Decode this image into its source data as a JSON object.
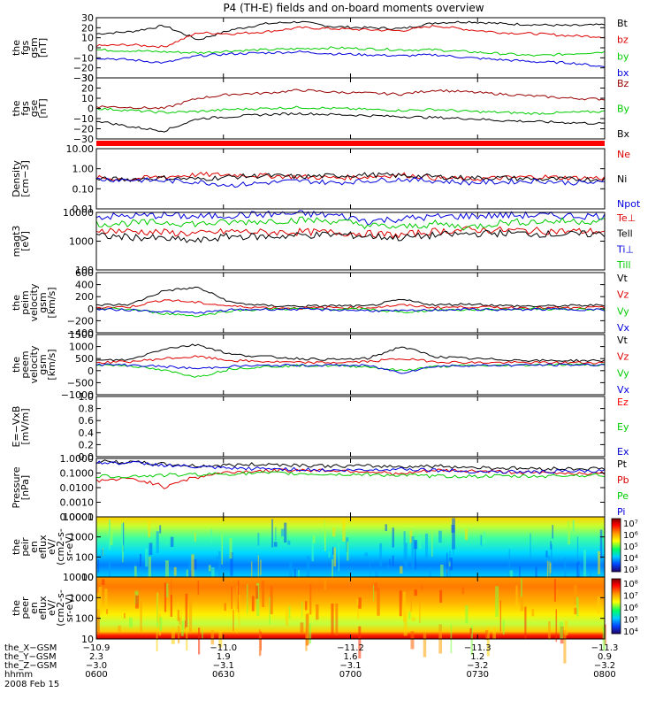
{
  "title": "P4 (TH-E) fields and on-board moments overview",
  "colors": {
    "black": "#000000",
    "red": "#dd0000",
    "green": "#00cc00",
    "blue": "#0000dd",
    "darkred": "#990000",
    "ez": "#ff0000",
    "ey": "#00cc00",
    "ex": "#0000cc"
  },
  "chart_data": [
    {
      "type": "line",
      "ylabel": [
        "the",
        "fgs",
        "gsm",
        "[nT]"
      ],
      "yticks": [
        "30",
        "20",
        "10",
        "0",
        "−10",
        "−20",
        "−30"
      ],
      "ylim": [
        -30,
        30
      ],
      "series": [
        {
          "name": "Bt",
          "color": "#000000",
          "values": [
            14,
            16,
            22,
            8,
            18,
            24,
            26,
            21,
            20,
            19,
            25,
            26,
            24,
            23,
            22,
            23
          ]
        },
        {
          "name": "bz",
          "color": "#dd0000",
          "values": [
            2,
            3,
            1,
            15,
            14,
            16,
            20,
            19,
            18,
            17,
            22,
            18,
            15,
            14,
            12,
            11
          ]
        },
        {
          "name": "by",
          "color": "#00cc00",
          "values": [
            -2,
            -3,
            -4,
            -5,
            -3,
            -2,
            -1,
            0,
            -1,
            -2,
            -2,
            -4,
            -6,
            -8,
            -6,
            -4
          ]
        },
        {
          "name": "bx",
          "color": "#0000dd",
          "values": [
            -10,
            -12,
            -15,
            -8,
            -6,
            -5,
            -4,
            -6,
            -7,
            -8,
            -7,
            -10,
            -12,
            -14,
            -15,
            -19
          ]
        }
      ]
    },
    {
      "type": "line",
      "ylabel": [
        "the",
        "fgs",
        "gse",
        "[nT]"
      ],
      "yticks": [
        "30",
        "20",
        "10",
        "0",
        "−10",
        "−20",
        "−30"
      ],
      "ylim": [
        -30,
        30
      ],
      "series": [
        {
          "name": "Bz",
          "color": "#990000",
          "values": [
            2,
            1,
            0,
            10,
            14,
            15,
            18,
            16,
            15,
            14,
            18,
            16,
            14,
            12,
            10,
            9
          ]
        },
        {
          "name": "By",
          "color": "#00cc00",
          "values": [
            0,
            -2,
            -4,
            -3,
            -1,
            0,
            1,
            0,
            -1,
            -2,
            -1,
            -3,
            -4,
            -5,
            -4,
            -3
          ]
        },
        {
          "name": "Bx",
          "color": "#000000",
          "values": [
            -12,
            -18,
            -22,
            -10,
            -8,
            -6,
            -5,
            -6,
            -7,
            -8,
            -9,
            -10,
            -12,
            -13,
            -14,
            -15
          ]
        }
      ]
    },
    {
      "type": "line",
      "ylabel": [
        "Density",
        "[cm−3]"
      ],
      "yticks": [
        "10.00",
        "1.00",
        "0.10",
        "0.01"
      ],
      "ylim": [
        0.01,
        10
      ],
      "log": true,
      "series": [
        {
          "name": "Ne",
          "color": "#dd0000",
          "values": [
            0.35,
            0.3,
            0.4,
            0.5,
            0.5,
            0.45,
            0.4,
            0.35,
            0.4,
            0.5,
            0.35,
            0.3,
            0.35,
            0.4,
            0.35,
            0.35
          ]
        },
        {
          "name": "Ni",
          "color": "#000000",
          "values": [
            0.3,
            0.3,
            0.35,
            0.3,
            0.4,
            0.45,
            0.4,
            0.45,
            0.5,
            0.45,
            0.4,
            0.35,
            0.35,
            0.3,
            0.3,
            0.3
          ]
        },
        {
          "name": "Npot",
          "color": "#0000dd",
          "values": [
            0.3,
            0.28,
            0.25,
            0.22,
            0.15,
            0.2,
            0.25,
            0.2,
            0.25,
            0.3,
            0.25,
            0.2,
            0.22,
            0.25,
            0.2,
            0.2
          ]
        }
      ]
    },
    {
      "type": "line",
      "ylabel": [
        "magt3",
        "[eV]"
      ],
      "yticks": [
        "10000",
        "1000",
        "100"
      ],
      "ylim": [
        100,
        10000
      ],
      "log": true,
      "series": [
        {
          "name": "Te⊥",
          "color": "#dd0000",
          "values": [
            2500,
            2200,
            2000,
            1800,
            2200,
            2000,
            2100,
            2000,
            1800,
            1600,
            2200,
            2500,
            2400,
            2300,
            2200,
            2200
          ]
        },
        {
          "name": "Tell",
          "color": "#000000",
          "values": [
            1500,
            1400,
            1200,
            1000,
            1500,
            1400,
            1600,
            1700,
            1500,
            1300,
            1600,
            1800,
            1900,
            1800,
            1700,
            1800
          ]
        },
        {
          "name": "Ti⊥",
          "color": "#0000dd",
          "values": [
            7000,
            7500,
            8000,
            7000,
            8000,
            8500,
            9000,
            8000,
            5000,
            6000,
            7000,
            7500,
            8000,
            7800,
            7600,
            7500
          ]
        },
        {
          "name": "Till",
          "color": "#00cc00",
          "values": [
            4000,
            4200,
            4500,
            4000,
            4500,
            5000,
            5500,
            5000,
            3500,
            3000,
            4000,
            3000,
            4500,
            4800,
            5000,
            5000
          ]
        }
      ]
    },
    {
      "type": "line",
      "ylabel": [
        "the",
        "peim",
        "velocity",
        "gsm",
        "[km/s]"
      ],
      "yticks": [
        "600",
        "400",
        "200",
        "0",
        "−200",
        "−400"
      ],
      "ylim": [
        -400,
        600
      ],
      "series": [
        {
          "name": "Vt",
          "color": "#000000",
          "values": [
            60,
            70,
            300,
            350,
            100,
            50,
            40,
            50,
            40,
            150,
            60,
            80,
            50,
            40,
            50,
            60
          ]
        },
        {
          "name": "Vz",
          "color": "#dd0000",
          "values": [
            20,
            30,
            150,
            100,
            40,
            20,
            10,
            20,
            15,
            60,
            20,
            30,
            20,
            15,
            10,
            20
          ]
        },
        {
          "name": "Vy",
          "color": "#00cc00",
          "values": [
            0,
            -10,
            -80,
            -120,
            -30,
            -10,
            0,
            -10,
            -10,
            -60,
            -20,
            -20,
            -10,
            0,
            -10,
            -10
          ]
        },
        {
          "name": "Vx",
          "color": "#0000dd",
          "values": [
            -10,
            -20,
            -50,
            -70,
            -20,
            -10,
            -10,
            -20,
            -30,
            -40,
            -20,
            -10,
            -20,
            -10,
            -10,
            -20
          ]
        }
      ]
    },
    {
      "type": "line",
      "ylabel": [
        "the",
        "peem",
        "velocity",
        "gsm",
        "[km/s]"
      ],
      "yticks": [
        "1500",
        "1000",
        "500",
        "0",
        "−500",
        "−1000"
      ],
      "ylim": [
        -1500,
        1500
      ],
      "series": [
        {
          "name": "Vt",
          "color": "#000000",
          "values": [
            200,
            250,
            800,
            1000,
            500,
            400,
            300,
            250,
            300,
            900,
            400,
            300,
            250,
            200,
            200,
            200
          ]
        },
        {
          "name": "Vz",
          "color": "#dd0000",
          "values": [
            100,
            150,
            300,
            400,
            200,
            150,
            100,
            100,
            150,
            300,
            150,
            100,
            100,
            100,
            100,
            100
          ]
        },
        {
          "name": "Vy",
          "color": "#00cc00",
          "values": [
            0,
            -50,
            -300,
            -600,
            -200,
            -100,
            -50,
            -50,
            -100,
            -300,
            -100,
            -50,
            -50,
            0,
            0,
            0
          ]
        },
        {
          "name": "Vx",
          "color": "#0000dd",
          "values": [
            0,
            -20,
            -100,
            -200,
            -80,
            -50,
            -30,
            -30,
            -50,
            -400,
            -80,
            -40,
            -30,
            -20,
            -10,
            -10
          ]
        }
      ]
    },
    {
      "type": "line",
      "ylabel": [
        "E=−VxB",
        "[mV/m]"
      ],
      "yticks": [
        "1.0",
        "0.8",
        "0.6",
        "0.4",
        "0.2",
        "0.0"
      ],
      "ylim": [
        0,
        1
      ],
      "series": [
        {
          "name": "Ez",
          "color": "#ff0000",
          "values": []
        },
        {
          "name": "Ey",
          "color": "#00cc00",
          "values": []
        },
        {
          "name": "Ex",
          "color": "#0000cc",
          "values": []
        }
      ]
    },
    {
      "type": "line",
      "ylabel": [
        "Pressure",
        "[nPa]"
      ],
      "yticks": [
        "1.0000",
        "0.1000",
        "0.0100",
        "0.0010",
        "0.0001"
      ],
      "ylim": [
        0.0001,
        1
      ],
      "log": true,
      "series": [
        {
          "name": "Pt",
          "color": "#000000",
          "values": [
            0.6,
            0.55,
            0.4,
            0.3,
            0.35,
            0.4,
            0.35,
            0.3,
            0.3,
            0.28,
            0.3,
            0.25,
            0.22,
            0.2,
            0.2,
            0.2
          ]
        },
        {
          "name": "Pb",
          "color": "#dd0000",
          "values": [
            0.03,
            0.04,
            0.01,
            0.05,
            0.12,
            0.14,
            0.16,
            0.15,
            0.13,
            0.08,
            0.15,
            0.14,
            0.12,
            0.1,
            0.1,
            0.09
          ]
        },
        {
          "name": "Pe",
          "color": "#00cc00",
          "values": [
            0.06,
            0.06,
            0.07,
            0.08,
            0.09,
            0.1,
            0.09,
            0.08,
            0.08,
            0.07,
            0.06,
            0.06,
            0.06,
            0.06,
            0.07,
            0.07
          ]
        },
        {
          "name": "Pi",
          "color": "#0000dd",
          "values": [
            0.5,
            0.5,
            0.35,
            0.25,
            0.2,
            0.2,
            0.18,
            0.15,
            0.16,
            0.2,
            0.16,
            0.13,
            0.12,
            0.12,
            0.13,
            0.13
          ]
        }
      ]
    },
    {
      "type": "heatmap",
      "ylabel": [
        "the",
        "peir",
        "en",
        "eflux",
        "eV/",
        "(cm2-s-",
        "sr-eV)"
      ],
      "yticks": [
        "10000",
        "1000",
        "100",
        "10"
      ],
      "ylim": [
        10,
        20000
      ],
      "colorbar_ticks": [
        "10⁷",
        "10⁶",
        "10⁵",
        "10⁴",
        "10³"
      ]
    },
    {
      "type": "heatmap",
      "ylabel": [
        "the",
        "peer",
        "en",
        "eflux",
        "eV/",
        "(cm2-s-",
        "sr-eV)"
      ],
      "yticks": [
        "10000",
        "1000",
        "100",
        "10"
      ],
      "ylim": [
        10,
        20000
      ],
      "colorbar_ticks": [
        "10⁸",
        "10⁷",
        "10⁶",
        "10⁵",
        "10⁴"
      ]
    }
  ],
  "x_axis": {
    "rows": [
      {
        "label": "the_X−GSM",
        "values": [
          "−10.9",
          "−11.0",
          "−11.2",
          "−11.3",
          "−11.3"
        ]
      },
      {
        "label": "the_Y−GSM",
        "values": [
          "2.3",
          "1.9",
          "1.6",
          "1.2",
          "0.9"
        ]
      },
      {
        "label": "the_Z−GSM",
        "values": [
          "−3.0",
          "−3.1",
          "−3.1",
          "−3.2",
          "−3.2"
        ]
      },
      {
        "label": "hhmm",
        "values": [
          "0600",
          "0630",
          "0700",
          "0730",
          "0800"
        ]
      }
    ],
    "date": "2008 Feb 15"
  }
}
